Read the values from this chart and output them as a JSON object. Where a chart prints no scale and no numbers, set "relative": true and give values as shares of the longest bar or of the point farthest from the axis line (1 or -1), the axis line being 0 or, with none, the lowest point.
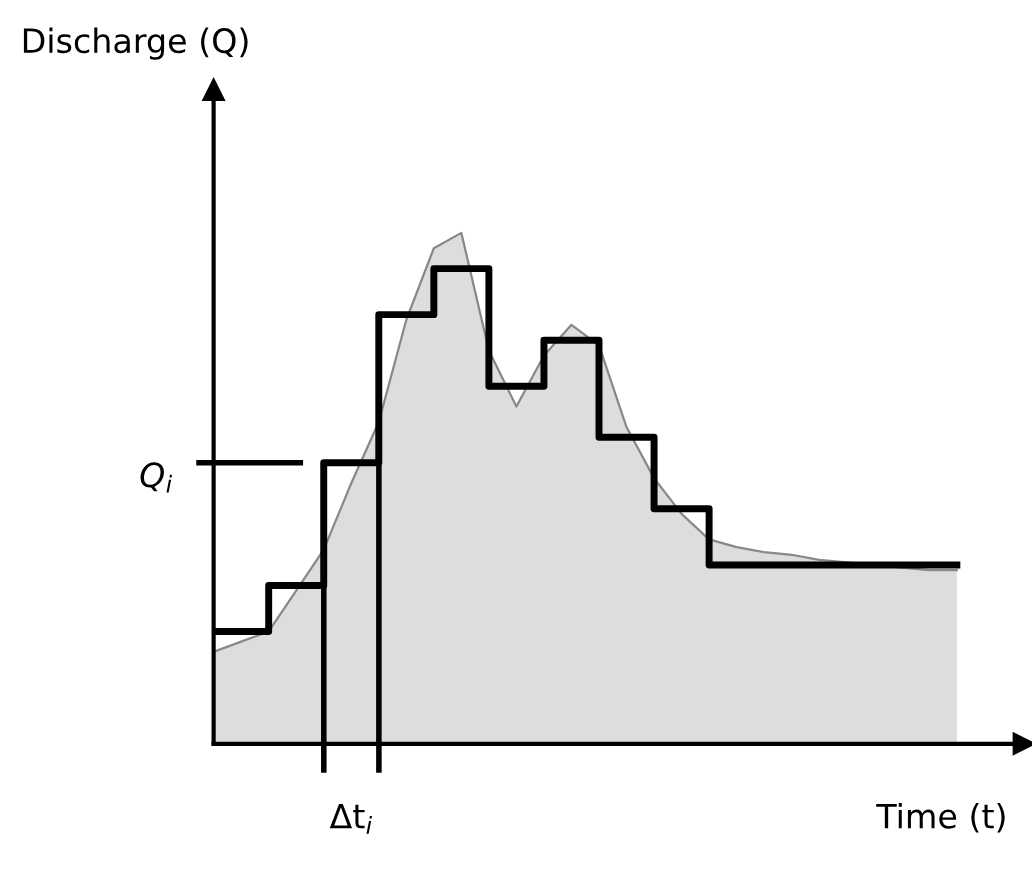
{
  "chart_data": {
    "type": "area",
    "relative": true,
    "xlabel": "Time (t)",
    "annotations": [
      "Discharge (Q)",
      "Δt$_{i}$"
    ],
    "categories": [
      null,
      null,
      null,
      null,
      null,
      null,
      null,
      null,
      null,
      null,
      null,
      null,
      null,
      null,
      null,
      null,
      null,
      null,
      null,
      null,
      null,
      null,
      null,
      null,
      null,
      null,
      null,
      null
    ],
    "series": [
      {
        "color": "#dddddd",
        "values": [
          0.18,
          0.2,
          0.22,
          0.3,
          0.38,
          0.51,
          0.63,
          0.83,
          0.97,
          1.0,
          0.77,
          0.66,
          0.76,
          0.82,
          0.78,
          0.62,
          0.52,
          0.45,
          0.4,
          0.385,
          0.375,
          0.37,
          0.36,
          0.355,
          0.35,
          0.345,
          0.34,
          0.34
        ]
      },
      {
        "type": "step",
        "color": "#000000",
        "values": [
          0.22,
          0.22,
          0.31,
          0.31,
          0.55,
          0.55,
          0.84,
          0.84,
          0.93,
          0.93,
          0.7,
          0.7,
          0.79,
          0.79,
          0.6,
          0.6,
          0.46,
          0.46,
          0.35,
          0.35,
          0.35,
          0.35,
          0.35,
          0.35,
          0.35,
          0.35,
          0.35,
          0.35
        ]
      }
    ],
    "ref_lines": [
      {
        "axis": "y",
        "value": 0.55,
        "label": "Q$_{i}$",
        "color": "#000000"
      }
    ]
  }
}
